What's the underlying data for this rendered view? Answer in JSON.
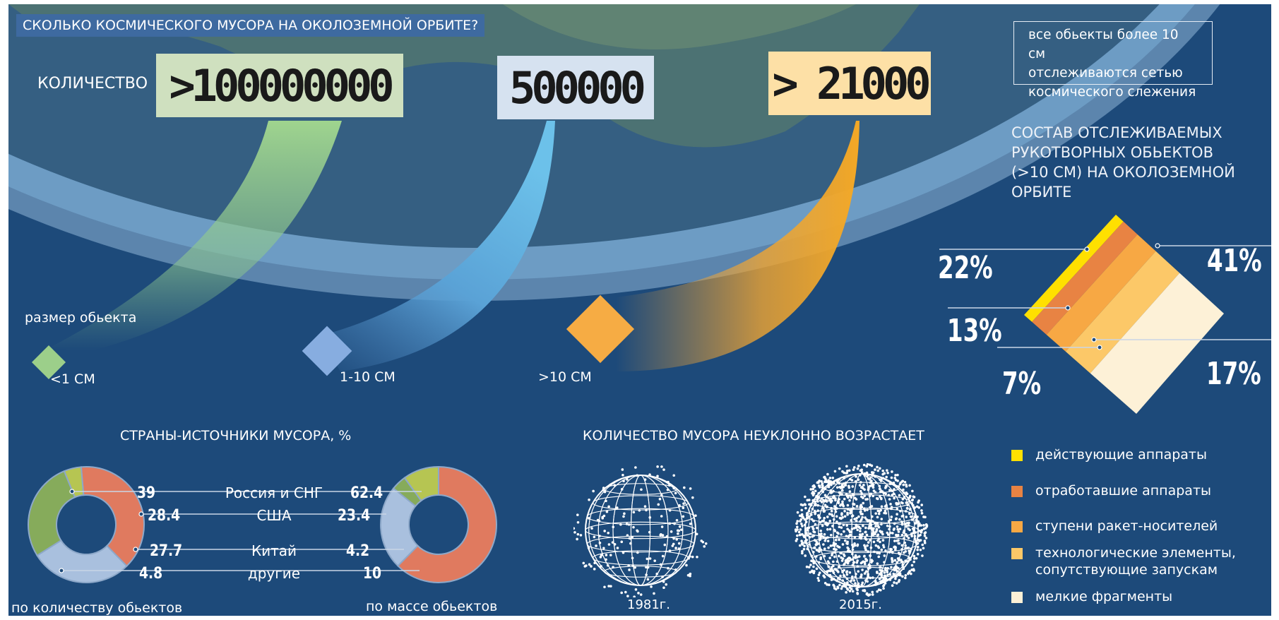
{
  "title": "СКОЛЬКО КОСМИЧЕСКОГО МУСОРА НА ОКОЛОЗЕМНОЙ ОРБИТЕ?",
  "quantity": {
    "label": "КОЛИЧЕСТВО",
    "counts": [
      {
        "value": ">100000000",
        "color": "#cfe0bf"
      },
      {
        "value": "500000",
        "color": "#d6e2f0"
      },
      {
        "value": "> 21000",
        "color": "#fde0a6"
      }
    ]
  },
  "size": {
    "label": "размер обьекта",
    "classes": [
      "<1 СМ",
      "1-10 СМ",
      ">10 СМ"
    ]
  },
  "note": "все обьекты более 10 см\nотслеживаются сетью\nкосмического слежения",
  "composition": {
    "title": "СОСТАВ ОТСЛЕЖИВАЕМЫХ\nРУКОТВОРНЫХ ОБЬЕКТОВ\n(>10 СМ) НА ОКОЛОЗЕМНОЙ\nОРБИТЕ",
    "labels": [
      "22%",
      "41%",
      "13%",
      "7%",
      "17%"
    ],
    "legend": [
      "действующие аппараты",
      "отработавшие аппараты",
      "ступени ракет-носителей",
      "технологические элементы,\nсопутствующие запускам",
      "мелкие фрагменты"
    ],
    "colors": [
      "#ffe000",
      "#e88343",
      "#f7a844",
      "#fcc868",
      "#fdf1d7"
    ]
  },
  "countries": {
    "title": "СТРАНЫ-ИСТОЧНИКИ МУСОРА, %",
    "left_caption": "по количеству обьектов",
    "right_caption": "по массе обьектов",
    "rows": [
      {
        "name": "Россия и СНГ",
        "by_count_label": "39",
        "by_mass_label": "62.4",
        "color": "#e07a5f"
      },
      {
        "name": "США",
        "by_count_label": "28.4",
        "by_mass_label": "23.4",
        "color": "#a9c0de"
      },
      {
        "name": "Китай",
        "by_count_label": "27.7",
        "by_mass_label": "4.2",
        "color": "#86ab5b"
      },
      {
        "name": "другие",
        "by_count_label": "4.8",
        "by_mass_label": "10",
        "color": "#b6c552"
      }
    ]
  },
  "growth": {
    "title": "КОЛИЧЕСТВО МУСОРА НЕУКЛОННО ВОЗРАСТАЕТ",
    "years": [
      "1981г.",
      "2015г."
    ]
  },
  "chart_data": [
    {
      "type": "pie",
      "title": "СОСТАВ ОТСЛЕЖИВАЕМЫХ РУКОТВОРНЫХ ОБЬЕКТОВ (>10 СМ) НА ОКОЛОЗЕМНОЙ ОРБИТЕ",
      "categories": [
        "действующие аппараты",
        "отработавшие аппараты",
        "ступени ракет-носителей",
        "технологические элементы, сопутствующие запускам",
        "мелкие фрагменты"
      ],
      "values": [
        7,
        13,
        17,
        22,
        41
      ],
      "legend": "bottom"
    },
    {
      "type": "pie",
      "title": "СТРАНЫ-ИСТОЧНИКИ МУСОРА, %",
      "xlabel": "по количеству обьектов",
      "categories": [
        "Россия и СНГ",
        "США",
        "Китай",
        "другие"
      ],
      "values": [
        39,
        28.4,
        27.7,
        4.8
      ]
    },
    {
      "type": "pie",
      "title": "СТРАНЫ-ИСТОЧНИКИ МУСОРА, %",
      "xlabel": "по массе обьектов",
      "categories": [
        "Россия и СНГ",
        "США",
        "Китай",
        "другие"
      ],
      "values": [
        62.4,
        23.4,
        4.2,
        10
      ]
    },
    {
      "type": "bar",
      "categories": [
        "<1 СМ",
        "1-10 СМ",
        ">10 СМ"
      ],
      "values": [
        100000000,
        500000,
        21000
      ],
      "ylabel": "КОЛИЧЕСТВО"
    }
  ]
}
